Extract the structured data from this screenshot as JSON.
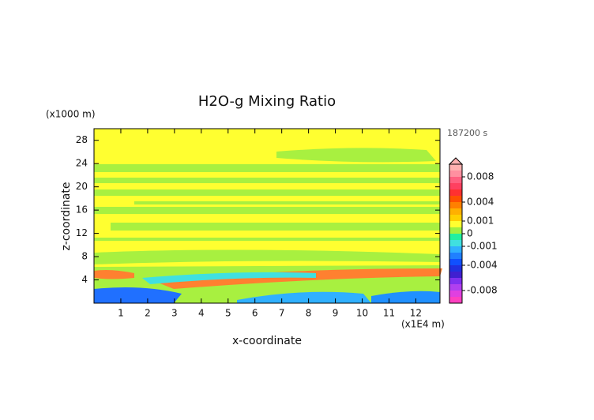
{
  "chart_data": {
    "type": "contour",
    "title": "H2O-g Mixing Ratio",
    "x_label": "x-coordinate",
    "y_label": "z-coordinate",
    "x_unit_label": "(x1E4 m)",
    "y_unit_label": "(x1000 m)",
    "time_label": "187200 s",
    "xlim": [
      0,
      12.9
    ],
    "xticks": [
      1,
      2,
      3,
      4,
      5,
      6,
      7,
      8,
      9,
      10,
      11,
      12
    ],
    "ylim": [
      0,
      30
    ],
    "yticks": [
      4,
      8,
      12,
      16,
      20,
      24,
      28
    ],
    "colorbar": {
      "levels": [
        -0.01,
        -0.009,
        -0.008,
        -0.007,
        -0.006,
        -0.005,
        -0.004,
        -0.003,
        -0.002,
        -0.001,
        -0.0005,
        0,
        0.0005,
        0.001,
        0.002,
        0.003,
        0.004,
        0.005,
        0.006,
        0.007,
        0.008,
        0.009,
        0.01
      ],
      "colors": [
        "#ff40c0",
        "#e040e0",
        "#b040f0",
        "#8030f0",
        "#4020d0",
        "#2030e0",
        "#1050ff",
        "#2080ff",
        "#30b0ff",
        "#40e0e0",
        "#20f0a0",
        "#a0f040",
        "#ffff30",
        "#ffd000",
        "#ffb000",
        "#ff8000",
        "#ff5000",
        "#ff3030",
        "#ff4060",
        "#ff6080",
        "#ff90a0",
        "#ffb0b0"
      ],
      "ticks": [
        0.008,
        0.004,
        0.001,
        0,
        -0.001,
        -0.004,
        -0.008
      ]
    }
  }
}
